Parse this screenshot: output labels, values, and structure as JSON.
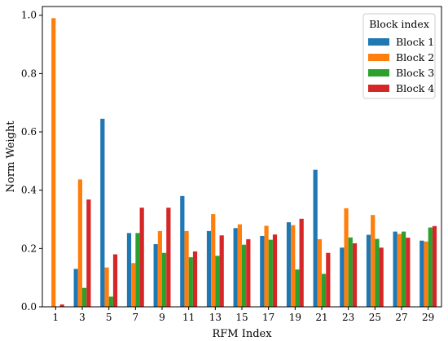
{
  "chart_data": {
    "type": "bar",
    "xlabel": "RFM Index",
    "ylabel": "Norm Weight",
    "ylim": [
      0,
      1.03
    ],
    "yticks": [
      0.0,
      0.2,
      0.4,
      0.6,
      0.8,
      1.0
    ],
    "ytick_labels": [
      "0.0",
      "0.2",
      "0.4",
      "0.6",
      "0.8",
      "1.0"
    ],
    "categories": [
      "1",
      "3",
      "5",
      "7",
      "9",
      "11",
      "13",
      "15",
      "17",
      "19",
      "21",
      "23",
      "25",
      "27",
      "29"
    ],
    "grid": false,
    "legend": {
      "title": "Block index",
      "placement": "top-right"
    },
    "series": [
      {
        "name": "Block 1",
        "color": "#1f77b4",
        "values": [
          0.0,
          0.13,
          0.645,
          0.253,
          0.215,
          0.38,
          0.26,
          0.27,
          0.243,
          0.29,
          0.47,
          0.203,
          0.247,
          0.258,
          0.227
        ]
      },
      {
        "name": "Block 2",
        "color": "#ff7f0e",
        "values": [
          0.99,
          0.437,
          0.135,
          0.15,
          0.26,
          0.26,
          0.318,
          0.283,
          0.278,
          0.28,
          0.232,
          0.338,
          0.315,
          0.25,
          0.224
        ]
      },
      {
        "name": "Block 3",
        "color": "#2ca02c",
        "values": [
          0.0,
          0.065,
          0.035,
          0.253,
          0.185,
          0.17,
          0.175,
          0.213,
          0.23,
          0.128,
          0.113,
          0.238,
          0.233,
          0.258,
          0.272
        ]
      },
      {
        "name": "Block 4",
        "color": "#d62728",
        "values": [
          0.008,
          0.368,
          0.18,
          0.34,
          0.34,
          0.19,
          0.245,
          0.232,
          0.248,
          0.302,
          0.185,
          0.218,
          0.203,
          0.237,
          0.277
        ]
      }
    ]
  }
}
